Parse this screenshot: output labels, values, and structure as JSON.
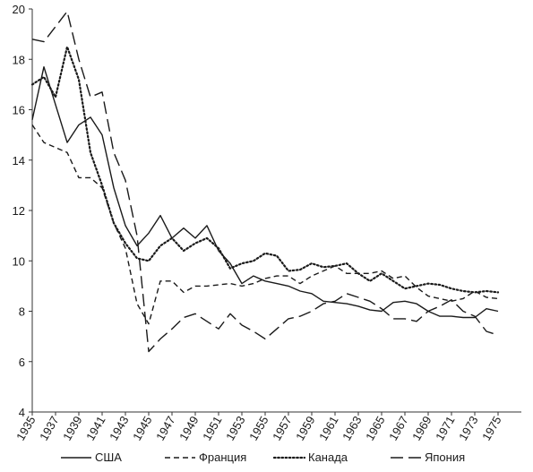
{
  "chart_data": {
    "type": "line",
    "title": "",
    "xlabel": "",
    "ylabel": "",
    "ylim": [
      4,
      20
    ],
    "yticks": [
      4,
      6,
      8,
      10,
      12,
      14,
      16,
      18,
      20
    ],
    "xlim": [
      1935,
      1976
    ],
    "xticks": [
      1935,
      1937,
      1939,
      1941,
      1943,
      1945,
      1947,
      1949,
      1951,
      1953,
      1955,
      1957,
      1959,
      1961,
      1963,
      1965,
      1967,
      1969,
      1971,
      1973,
      1975
    ],
    "grid": false,
    "legend": "bottom",
    "series": [
      {
        "name": "США",
        "dash": "solid",
        "x": [
          1935,
          1936,
          1937,
          1938,
          1939,
          1940,
          1941,
          1942,
          1943,
          1944,
          1945,
          1946,
          1947,
          1948,
          1949,
          1950,
          1951,
          1952,
          1953,
          1954,
          1955,
          1956,
          1957,
          1958,
          1959,
          1960,
          1961,
          1962,
          1963,
          1964,
          1965,
          1966,
          1967,
          1968,
          1969,
          1970,
          1971,
          1972,
          1973,
          1974,
          1975
        ],
        "values": [
          15.6,
          17.7,
          16.2,
          14.7,
          15.4,
          15.7,
          15.0,
          12.9,
          11.4,
          10.6,
          11.1,
          11.8,
          10.9,
          11.3,
          10.9,
          11.4,
          10.4,
          9.9,
          9.1,
          9.4,
          9.2,
          9.1,
          9.0,
          8.8,
          8.7,
          8.4,
          8.35,
          8.3,
          8.2,
          8.05,
          8.0,
          8.35,
          8.4,
          8.3,
          8.0,
          7.8,
          7.8,
          7.75,
          7.75,
          8.1,
          8.0
        ]
      },
      {
        "name": "Франция",
        "dash": "dashed",
        "x": [
          1935,
          1936,
          1937,
          1938,
          1939,
          1940,
          1941,
          1942,
          1943,
          1944,
          1945,
          1946,
          1947,
          1948,
          1949,
          1950,
          1951,
          1952,
          1953,
          1954,
          1955,
          1956,
          1957,
          1958,
          1959,
          1960,
          1961,
          1962,
          1963,
          1964,
          1965,
          1966,
          1967,
          1968,
          1969,
          1970,
          1971,
          1972,
          1973,
          1974,
          1975
        ],
        "values": [
          15.4,
          14.7,
          14.5,
          14.3,
          13.3,
          13.3,
          12.9,
          11.5,
          10.5,
          8.3,
          7.5,
          9.2,
          9.2,
          8.75,
          9.0,
          9.0,
          9.05,
          9.1,
          9.0,
          9.1,
          9.3,
          9.4,
          9.4,
          9.1,
          9.4,
          9.6,
          9.8,
          9.5,
          9.5,
          9.5,
          9.6,
          9.3,
          9.4,
          8.95,
          8.6,
          8.5,
          8.4,
          8.5,
          8.8,
          8.55,
          8.5
        ]
      },
      {
        "name": "Канада",
        "dash": "dotted",
        "x": [
          1935,
          1936,
          1937,
          1938,
          1939,
          1940,
          1941,
          1942,
          1943,
          1944,
          1945,
          1946,
          1947,
          1948,
          1949,
          1950,
          1951,
          1952,
          1953,
          1954,
          1955,
          1956,
          1957,
          1958,
          1959,
          1960,
          1961,
          1962,
          1963,
          1964,
          1965,
          1966,
          1967,
          1968,
          1969,
          1970,
          1971,
          1972,
          1973,
          1974,
          1975
        ],
        "values": [
          17.0,
          17.3,
          16.5,
          18.5,
          17.2,
          14.3,
          13.0,
          11.5,
          10.7,
          10.1,
          10.0,
          10.6,
          10.9,
          10.4,
          10.7,
          10.9,
          10.5,
          9.7,
          9.9,
          10.0,
          10.3,
          10.2,
          9.6,
          9.65,
          9.9,
          9.75,
          9.8,
          9.9,
          9.5,
          9.2,
          9.5,
          9.2,
          8.9,
          9.0,
          9.1,
          9.05,
          8.9,
          8.8,
          8.75,
          8.8,
          8.75
        ]
      },
      {
        "name": "Япония",
        "dash": "longdash",
        "x": [
          1935,
          1936,
          1937,
          1938,
          1939,
          1940,
          1941,
          1942,
          1943,
          1944,
          1945,
          1946,
          1947,
          1948,
          1949,
          1950,
          1951,
          1952,
          1953,
          1954,
          1955,
          1956,
          1957,
          1958,
          1959,
          1960,
          1961,
          1962,
          1963,
          1964,
          1965,
          1966,
          1967,
          1968,
          1969,
          1970,
          1971,
          1972,
          1973,
          1974,
          1975
        ],
        "values": [
          18.8,
          18.7,
          19.3,
          19.9,
          18.0,
          16.5,
          16.7,
          14.3,
          13.2,
          11.0,
          6.4,
          6.9,
          7.3,
          7.75,
          7.9,
          7.6,
          7.3,
          7.9,
          7.45,
          7.2,
          6.9,
          7.3,
          7.7,
          7.8,
          8.0,
          8.3,
          8.4,
          8.7,
          8.55,
          8.4,
          8.1,
          7.7,
          7.7,
          7.6,
          8.0,
          8.2,
          8.45,
          8.0,
          7.8,
          7.2,
          7.05
        ]
      }
    ]
  }
}
